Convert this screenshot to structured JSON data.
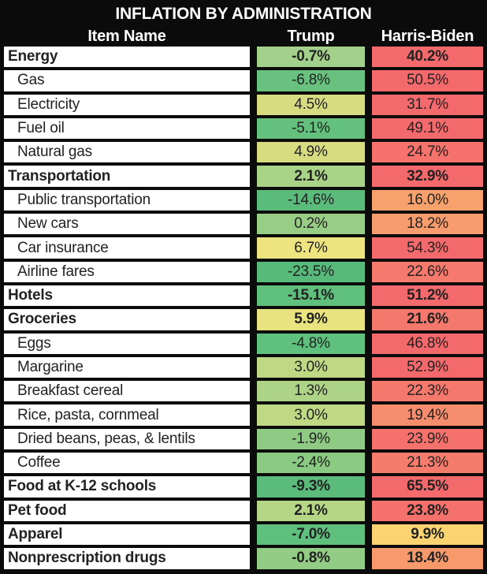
{
  "title": "INFLATION BY ADMINISTRATION",
  "columns": {
    "item": "Item Name",
    "trump": "Trump",
    "harris": "Harris-Biden"
  },
  "palette": {
    "frame": "#0b0b0b",
    "cell_bg": "#ffffff",
    "header_text": "#ffffff",
    "value_text": "#222222",
    "scale_green": "#57ba7b",
    "scale_yellow": "#ede47f",
    "scale_red": "#f4696b"
  },
  "rows": [
    {
      "label": "Energy",
      "bold": true,
      "trump": "-0.7%",
      "trump_color": "#a3d18b",
      "harris": "40.2%",
      "harris_color": "#f4696b"
    },
    {
      "label": "Gas",
      "bold": false,
      "trump": "-6.8%",
      "trump_color": "#68c17e",
      "harris": "50.5%",
      "harris_color": "#f4696b"
    },
    {
      "label": "Electricity",
      "bold": false,
      "trump": "4.5%",
      "trump_color": "#d7dc81",
      "harris": "31.7%",
      "harris_color": "#f4696b"
    },
    {
      "label": "Fuel oil",
      "bold": false,
      "trump": "-5.1%",
      "trump_color": "#63c07d",
      "harris": "49.1%",
      "harris_color": "#f4696b"
    },
    {
      "label": "Natural gas",
      "bold": false,
      "trump": "4.9%",
      "trump_color": "#d8dc81",
      "harris": "24.7%",
      "harris_color": "#f5736c"
    },
    {
      "label": "Transportation",
      "bold": true,
      "trump": "2.1%",
      "trump_color": "#a9d488",
      "harris": "32.9%",
      "harris_color": "#f4696b"
    },
    {
      "label": "Public transportation",
      "bold": false,
      "trump": "-14.6%",
      "trump_color": "#5abb7b",
      "harris": "16.0%",
      "harris_color": "#f7a26d"
    },
    {
      "label": "New cars",
      "bold": false,
      "trump": "0.2%",
      "trump_color": "#97cd84",
      "harris": "18.2%",
      "harris_color": "#f79c6c"
    },
    {
      "label": "Car insurance",
      "bold": false,
      "trump": "6.7%",
      "trump_color": "#ede47f",
      "harris": "54.3%",
      "harris_color": "#f4696b"
    },
    {
      "label": "Airline fares",
      "bold": false,
      "trump": "-23.5%",
      "trump_color": "#57ba7b",
      "harris": "22.6%",
      "harris_color": "#f5796d"
    },
    {
      "label": "Hotels",
      "bold": true,
      "trump": "-15.1%",
      "trump_color": "#5fbf7c",
      "harris": "51.2%",
      "harris_color": "#f4696b"
    },
    {
      "label": "Groceries",
      "bold": true,
      "trump": "5.9%",
      "trump_color": "#e9e380",
      "harris": "21.6%",
      "harris_color": "#f5786d"
    },
    {
      "label": "Eggs",
      "bold": false,
      "trump": "-4.8%",
      "trump_color": "#60c07d",
      "harris": "46.8%",
      "harris_color": "#f4696b"
    },
    {
      "label": "Margarine",
      "bold": false,
      "trump": "3.0%",
      "trump_color": "#bed884",
      "harris": "52.9%",
      "harris_color": "#f4696b"
    },
    {
      "label": "Breakfast cereal",
      "bold": false,
      "trump": "1.3%",
      "trump_color": "#add386",
      "harris": "22.3%",
      "harris_color": "#f5786d"
    },
    {
      "label": "Rice, pasta, cornmeal",
      "bold": false,
      "trump": "3.0%",
      "trump_color": "#bed884",
      "harris": "19.4%",
      "harris_color": "#f68d6e"
    },
    {
      "label": "Dried beans, peas, & lentils",
      "bold": false,
      "trump": "-1.9%",
      "trump_color": "#8fca84",
      "harris": "23.9%",
      "harris_color": "#f5726c"
    },
    {
      "label": "Coffee",
      "bold": false,
      "trump": "-2.4%",
      "trump_color": "#8bca83",
      "harris": "21.3%",
      "harris_color": "#f57b6d"
    },
    {
      "label": "Food at K-12 schools",
      "bold": true,
      "trump": "-9.3%",
      "trump_color": "#5abb7b",
      "harris": "65.5%",
      "harris_color": "#f4696b"
    },
    {
      "label": "Pet food",
      "bold": true,
      "trump": "2.1%",
      "trump_color": "#b5d685",
      "harris": "23.8%",
      "harris_color": "#f5716c"
    },
    {
      "label": "Apparel",
      "bold": true,
      "trump": "-7.0%",
      "trump_color": "#5ec07c",
      "harris": "9.9%",
      "harris_color": "#fbd471"
    },
    {
      "label": "Nonprescription drugs",
      "bold": true,
      "trump": "-0.8%",
      "trump_color": "#93cc85",
      "harris": "18.4%",
      "harris_color": "#f79a6b"
    }
  ],
  "chart_data": {
    "type": "table",
    "title": "INFLATION BY ADMINISTRATION",
    "columns": [
      "Item Name",
      "Trump",
      "Harris-Biden"
    ],
    "categories": [
      "Energy",
      "Gas",
      "Electricity",
      "Fuel oil",
      "Natural gas",
      "Transportation",
      "Public transportation",
      "New cars",
      "Car insurance",
      "Airline fares",
      "Hotels",
      "Groceries",
      "Eggs",
      "Margarine",
      "Breakfast cereal",
      "Rice, pasta, cornmeal",
      "Dried beans, peas, & lentils",
      "Coffee",
      "Food at K-12 schools",
      "Pet food",
      "Apparel",
      "Nonprescription drugs"
    ],
    "series": [
      {
        "name": "Trump",
        "unit": "%",
        "values": [
          -0.7,
          -6.8,
          4.5,
          -5.1,
          4.9,
          2.1,
          -14.6,
          0.2,
          6.7,
          -23.5,
          -15.1,
          5.9,
          -4.8,
          3.0,
          1.3,
          3.0,
          -1.9,
          -2.4,
          -9.3,
          2.1,
          -7.0,
          -0.8
        ]
      },
      {
        "name": "Harris-Biden",
        "unit": "%",
        "values": [
          40.2,
          50.5,
          31.7,
          49.1,
          24.7,
          32.9,
          16.0,
          18.2,
          54.3,
          22.6,
          51.2,
          21.6,
          46.8,
          52.9,
          22.3,
          19.4,
          23.9,
          21.3,
          65.5,
          23.8,
          9.9,
          18.4
        ]
      }
    ],
    "heatmap_note": "cells colored on green(low)-yellow-red(high) scale",
    "bold_category_rows": [
      "Energy",
      "Transportation",
      "Hotels",
      "Groceries",
      "Food at K-12 schools",
      "Pet food",
      "Apparel",
      "Nonprescription drugs"
    ]
  }
}
